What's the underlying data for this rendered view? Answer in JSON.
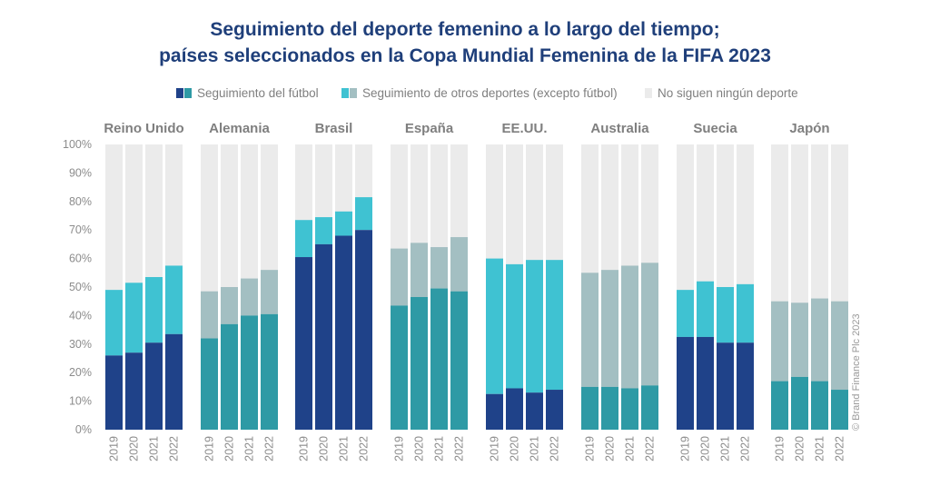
{
  "title_line1": "Seguimiento del deporte femenino a lo largo del tiempo;",
  "title_line2": "países seleccionados en la Copa Mundial Femenina de la FIFA 2023",
  "credit": "© Brand Finance Plc 2023",
  "colors": {
    "football_dark": "#1f4289",
    "football_teal": "#2e9aa5",
    "other_cyan": "#3fc2d2",
    "other_gray": "#a3bfc2",
    "none": "#ebebeb"
  },
  "legend": [
    {
      "label": "Seguimiento del fútbol",
      "colors": [
        "#1f4289",
        "#2e9aa5"
      ]
    },
    {
      "label": "Seguimiento de otros deportes (excepto fútbol)",
      "colors": [
        "#3fc2d2",
        "#a3bfc2"
      ]
    },
    {
      "label": "No siguen ningún deporte",
      "colors": [
        "#ebebeb"
      ]
    }
  ],
  "chart_data": {
    "type": "bar",
    "stacked": true,
    "y_ticks": [
      "0%",
      "10%",
      "20%",
      "30%",
      "40%",
      "50%",
      "60%",
      "70%",
      "80%",
      "90%",
      "100%"
    ],
    "ylim": [
      0,
      100
    ],
    "years": [
      "2019",
      "2020",
      "2021",
      "2022"
    ],
    "groups": [
      {
        "country": "Reino Unido",
        "football_color": "#1f4289",
        "other_color": "#3fc2d2",
        "football": [
          26,
          27,
          30.5,
          33.5
        ],
        "total_followers": [
          49,
          51.5,
          53.5,
          57.5
        ]
      },
      {
        "country": "Alemania",
        "football_color": "#2e9aa5",
        "other_color": "#a3bfc2",
        "football": [
          32,
          37,
          40,
          40.5
        ],
        "total_followers": [
          48.5,
          50,
          53,
          56
        ]
      },
      {
        "country": "Brasil",
        "football_color": "#1f4289",
        "other_color": "#3fc2d2",
        "football": [
          60.5,
          65,
          68,
          70
        ],
        "total_followers": [
          73.5,
          74.5,
          76.5,
          81.5
        ]
      },
      {
        "country": "España",
        "football_color": "#2e9aa5",
        "other_color": "#a3bfc2",
        "football": [
          43.5,
          46.5,
          49.5,
          48.5
        ],
        "total_followers": [
          63.5,
          65.5,
          64,
          67.5
        ]
      },
      {
        "country": "EE.UU.",
        "football_color": "#1f4289",
        "other_color": "#3fc2d2",
        "football": [
          12.5,
          14.5,
          13,
          14
        ],
        "total_followers": [
          60,
          58,
          59.5,
          59.5
        ]
      },
      {
        "country": "Australia",
        "football_color": "#2e9aa5",
        "other_color": "#a3bfc2",
        "football": [
          15,
          15,
          14.5,
          15.5
        ],
        "total_followers": [
          55,
          56,
          57.5,
          58.5
        ]
      },
      {
        "country": "Suecia",
        "football_color": "#1f4289",
        "other_color": "#3fc2d2",
        "football": [
          32.5,
          32.5,
          30.5,
          30.5
        ],
        "total_followers": [
          49,
          52,
          50,
          51
        ]
      },
      {
        "country": "Japón",
        "football_color": "#2e9aa5",
        "other_color": "#a3bfc2",
        "football": [
          17,
          18.5,
          17,
          14
        ],
        "total_followers": [
          45,
          44.5,
          46,
          45
        ]
      }
    ]
  }
}
